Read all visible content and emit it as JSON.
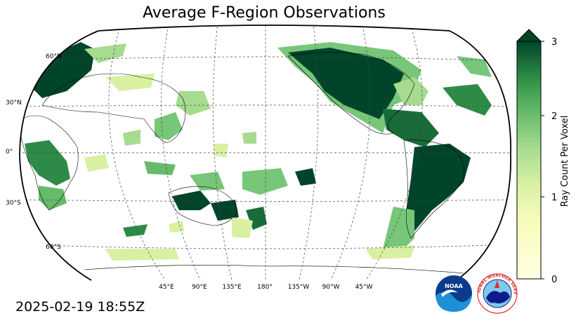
{
  "title": "Average F-Region Observations",
  "timestamp": "2025-02-19 18:55Z",
  "colorbar": {
    "label": "Ray Count Per Voxel",
    "ticks": [
      "0",
      "1",
      "2",
      "3"
    ],
    "colors": [
      "#ffffe5",
      "#d9f0a3",
      "#78c679",
      "#238443",
      "#004529"
    ]
  },
  "lat_labels": [
    "60°N",
    "30°N",
    "0°",
    "30°S",
    "60°S"
  ],
  "lon_labels": [
    "45°E",
    "90°E",
    "135°E",
    "180°",
    "135°W",
    "90°W",
    "45°W"
  ],
  "logos": {
    "noaa": "NOAA",
    "nws": "NATIONAL WEATHER SERVICE"
  }
}
